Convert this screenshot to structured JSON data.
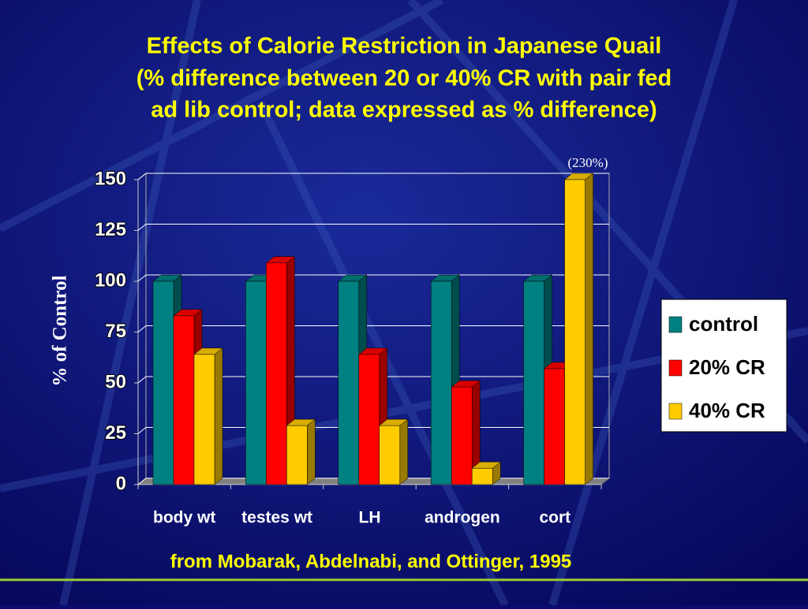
{
  "chart_data": {
    "type": "bar3d",
    "title": [
      "Effects of Calorie Restriction in Japanese Quail",
      "(% difference between 20 or 40% CR with pair fed",
      "ad lib control; data expressed as % difference)"
    ],
    "ylabel": "% of Control",
    "annotation": "(230%)",
    "source": "from Mobarak, Abdelnabi, and Ottinger, 1995",
    "categories": [
      "body wt",
      "testes wt",
      "LH",
      "androgen",
      "cort"
    ],
    "series": [
      {
        "name": "control",
        "color": "#008080",
        "values": [
          100,
          100,
          100,
          100,
          100
        ]
      },
      {
        "name": "20% CR",
        "color": "#ff0000",
        "values": [
          83,
          109,
          64,
          48,
          57
        ]
      },
      {
        "name": "40% CR",
        "color": "#ffcc00",
        "values": [
          64,
          29,
          29,
          8,
          150
        ]
      }
    ],
    "ylim": [
      0,
      150
    ],
    "yticks": [
      0,
      25,
      50,
      75,
      100,
      125,
      150
    ],
    "grid": true,
    "legend": "right"
  }
}
